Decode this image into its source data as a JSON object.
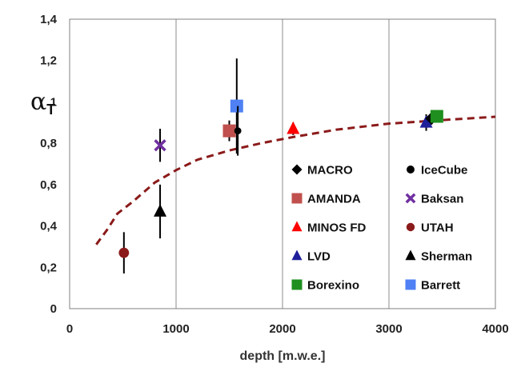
{
  "chart_data": {
    "type": "scatter",
    "title": "",
    "xlabel": "depth [m.w.e.]",
    "ylabel": {
      "main": "α",
      "sub": "T"
    },
    "xlim": [
      0,
      4000
    ],
    "ylim": [
      0,
      1.4
    ],
    "x_ticks": [
      0,
      1000,
      2000,
      3000,
      4000
    ],
    "x_tick_labels": [
      "0",
      "1000",
      "2000",
      "3000",
      "4000"
    ],
    "y_ticks": [
      0,
      0.2,
      0.4,
      0.6,
      0.8,
      1.0,
      1.2,
      1.4
    ],
    "y_tick_labels": [
      "0",
      "0,2",
      "0,4",
      "0,6",
      "0,8",
      "1",
      "1,2",
      "1,4"
    ],
    "grid": "vertical",
    "legend_position": "inside-lower-right",
    "series": [
      {
        "name": "MACRO",
        "marker": "diamond",
        "color": "#000000",
        "points": [
          {
            "x": 3400,
            "y": 0.92,
            "err": 0.03
          }
        ]
      },
      {
        "name": "IceCube",
        "marker": "small-circle",
        "color": "#000000",
        "points": [
          {
            "x": 1580,
            "y": 0.86,
            "err": 0.12
          }
        ]
      },
      {
        "name": "AMANDA",
        "marker": "square",
        "color": "#c0504d",
        "points": [
          {
            "x": 1500,
            "y": 0.86,
            "err": 0.05
          }
        ]
      },
      {
        "name": "Baksan",
        "marker": "x",
        "color": "#7030a0",
        "points": [
          {
            "x": 850,
            "y": 0.79,
            "err": 0.08
          }
        ]
      },
      {
        "name": "MINOS FD",
        "marker": "triangle",
        "color": "#ff0000",
        "points": [
          {
            "x": 2100,
            "y": 0.87,
            "err": 0.03
          }
        ]
      },
      {
        "name": "UTAH",
        "marker": "circle",
        "color": "#8b1a1a",
        "points": [
          {
            "x": 510,
            "y": 0.27,
            "err": 0.1
          }
        ]
      },
      {
        "name": "LVD",
        "marker": "triangle",
        "color": "#1f1f9c",
        "points": [
          {
            "x": 3350,
            "y": 0.9,
            "err": 0.04
          }
        ]
      },
      {
        "name": "Sherman",
        "marker": "triangle",
        "color": "#000000",
        "points": [
          {
            "x": 850,
            "y": 0.47,
            "err": 0.13
          }
        ]
      },
      {
        "name": "Borexino",
        "marker": "square",
        "color": "#1f8f1f",
        "points": [
          {
            "x": 3450,
            "y": 0.93,
            "err": 0.03
          }
        ]
      },
      {
        "name": "Barrett",
        "marker": "square",
        "color": "#4f81f5",
        "points": [
          {
            "x": 1570,
            "y": 0.98,
            "err": 0.23
          }
        ]
      }
    ],
    "legend_layout": [
      [
        "MACRO",
        "IceCube"
      ],
      [
        "AMANDA",
        "Baksan"
      ],
      [
        "MINOS FD",
        "UTAH"
      ],
      [
        "LVD",
        "Sherman"
      ],
      [
        "Borexino",
        "Barrett"
      ]
    ],
    "fit_curve": {
      "style": "dashed",
      "color": "#8b1a1a",
      "points": [
        [
          250,
          0.31
        ],
        [
          350,
          0.38
        ],
        [
          450,
          0.46
        ],
        [
          600,
          0.52
        ],
        [
          800,
          0.61
        ],
        [
          1000,
          0.67
        ],
        [
          1200,
          0.72
        ],
        [
          1500,
          0.765
        ],
        [
          1800,
          0.8
        ],
        [
          2100,
          0.83
        ],
        [
          2500,
          0.865
        ],
        [
          3000,
          0.895
        ],
        [
          3500,
          0.912
        ],
        [
          4000,
          0.928
        ]
      ]
    }
  }
}
